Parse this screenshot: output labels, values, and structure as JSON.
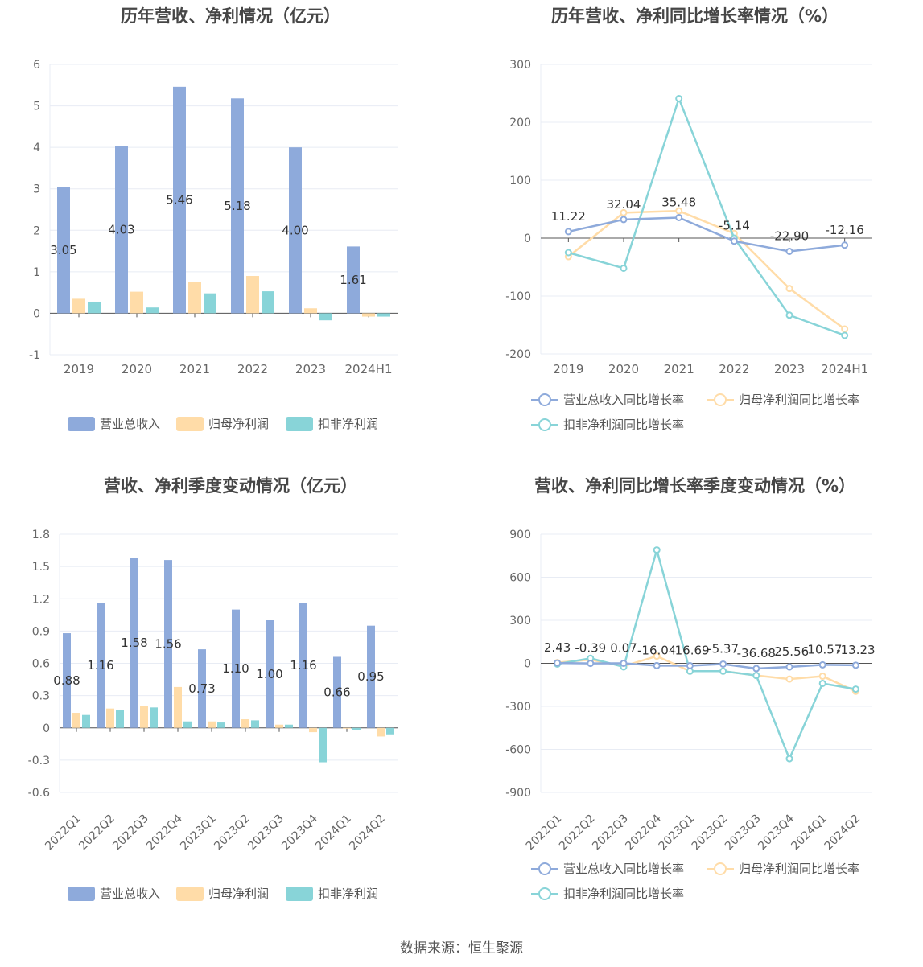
{
  "footer": "数据来源：恒生聚源",
  "colors": {
    "revenue": "#8eaadb",
    "net_profit": "#ffdca8",
    "deducted_profit": "#88d4d8",
    "revenue_line": "#8eaadb",
    "net_line": "#ffdca8",
    "deducted_line": "#88d4d8",
    "axis": "#333333",
    "grid": "#e8ecf4"
  },
  "legend_bar": [
    "营业总收入",
    "归母净利润",
    "扣非净利润"
  ],
  "legend_line": [
    "营业总收入同比增长率",
    "归母净利润同比增长率",
    "扣非净利润同比增长率"
  ],
  "chart_data": [
    {
      "id": "annual-bar",
      "type": "bar",
      "title": "历年营收、净利情况（亿元）",
      "categories": [
        "2019",
        "2020",
        "2021",
        "2022",
        "2023",
        "2024H1"
      ],
      "ylim": [
        -1,
        6
      ],
      "yticks": [
        -1,
        0,
        1,
        2,
        3,
        4,
        5,
        6
      ],
      "series": [
        {
          "name": "营业总收入",
          "values": [
            3.05,
            4.03,
            5.46,
            5.18,
            4.0,
            1.61
          ],
          "labels": [
            "3.05",
            "4.03",
            "5.46",
            "5.18",
            "4.00",
            "1.61"
          ]
        },
        {
          "name": "归母净利润",
          "values": [
            0.35,
            0.52,
            0.76,
            0.9,
            0.12,
            -0.08
          ]
        },
        {
          "name": "扣非净利润",
          "values": [
            0.28,
            0.14,
            0.48,
            0.53,
            -0.17,
            -0.08
          ]
        }
      ],
      "legend": "bottom"
    },
    {
      "id": "annual-line",
      "type": "line",
      "title": "历年营收、净利同比增长率情况（%）",
      "categories": [
        "2019",
        "2020",
        "2021",
        "2022",
        "2023",
        "2024H1"
      ],
      "ylim": [
        -200,
        300
      ],
      "yticks": [
        -200,
        -100,
        0,
        100,
        200,
        300
      ],
      "series": [
        {
          "name": "营业总收入同比增长率",
          "values": [
            11.22,
            32.04,
            35.48,
            -5.14,
            -22.9,
            -12.16
          ],
          "labels": [
            "11.22",
            "32.04",
            "35.48",
            "-5.14",
            "-22.90",
            "-12.16"
          ]
        },
        {
          "name": "归母净利润同比增长率",
          "values": [
            -32,
            44,
            47,
            8,
            -87,
            -157
          ]
        },
        {
          "name": "扣非净利润同比增长率",
          "values": [
            -25,
            -52,
            241,
            0,
            -133,
            -168
          ]
        }
      ],
      "legend": "bottom"
    },
    {
      "id": "quarter-bar",
      "type": "bar",
      "title": "营收、净利季度变动情况（亿元）",
      "categories": [
        "2022Q1",
        "2022Q2",
        "2022Q3",
        "2022Q4",
        "2023Q1",
        "2023Q2",
        "2023Q3",
        "2023Q4",
        "2024Q1",
        "2024Q2"
      ],
      "ylim": [
        -0.6,
        1.8
      ],
      "yticks": [
        -0.6,
        -0.3,
        0,
        0.3,
        0.6,
        0.9,
        1.2,
        1.5,
        1.8
      ],
      "series": [
        {
          "name": "营业总收入",
          "values": [
            0.88,
            1.16,
            1.58,
            1.56,
            0.73,
            1.1,
            1.0,
            1.16,
            0.66,
            0.95
          ],
          "labels": [
            "0.88",
            "1.16",
            "1.58",
            "1.56",
            "0.73",
            "1.10",
            "1.00",
            "1.16",
            "0.66",
            "0.95"
          ]
        },
        {
          "name": "归母净利润",
          "values": [
            0.14,
            0.18,
            0.2,
            0.38,
            0.06,
            0.08,
            0.03,
            -0.04,
            -0.005,
            -0.08
          ]
        },
        {
          "name": "扣非净利润",
          "values": [
            0.12,
            0.17,
            0.19,
            0.06,
            0.05,
            0.07,
            0.03,
            -0.32,
            -0.02,
            -0.06
          ]
        }
      ],
      "legend": "bottom"
    },
    {
      "id": "quarter-line",
      "type": "line",
      "title": "营收、净利同比增长率季度变动情况（%）",
      "categories": [
        "2022Q1",
        "2022Q2",
        "2022Q3",
        "2022Q4",
        "2023Q1",
        "2023Q2",
        "2023Q3",
        "2023Q4",
        "2024Q1",
        "2024Q2"
      ],
      "ylim": [
        -900,
        900
      ],
      "yticks": [
        -900,
        -600,
        -300,
        0,
        300,
        600,
        900
      ],
      "series": [
        {
          "name": "营业总收入同比增长率",
          "values": [
            2.43,
            -0.39,
            0.07,
            -16.04,
            -16.69,
            -5.37,
            -36.68,
            -25.56,
            -10.57,
            -13.23
          ],
          "labels": [
            "2.43",
            "-0.39",
            "0.07",
            "-16.04",
            "-16.69",
            "-5.37",
            "-36.68",
            "-25.56",
            "-10.57",
            "-13.23"
          ]
        },
        {
          "name": "归母净利润同比增长率",
          "values": [
            5,
            25,
            -20,
            50,
            -55,
            -55,
            -85,
            -110,
            -90,
            -195
          ]
        },
        {
          "name": "扣非净利润同比增长率",
          "values": [
            -5,
            35,
            -25,
            790,
            -55,
            -55,
            -85,
            -665,
            -140,
            -180
          ]
        }
      ],
      "legend": "bottom"
    }
  ]
}
